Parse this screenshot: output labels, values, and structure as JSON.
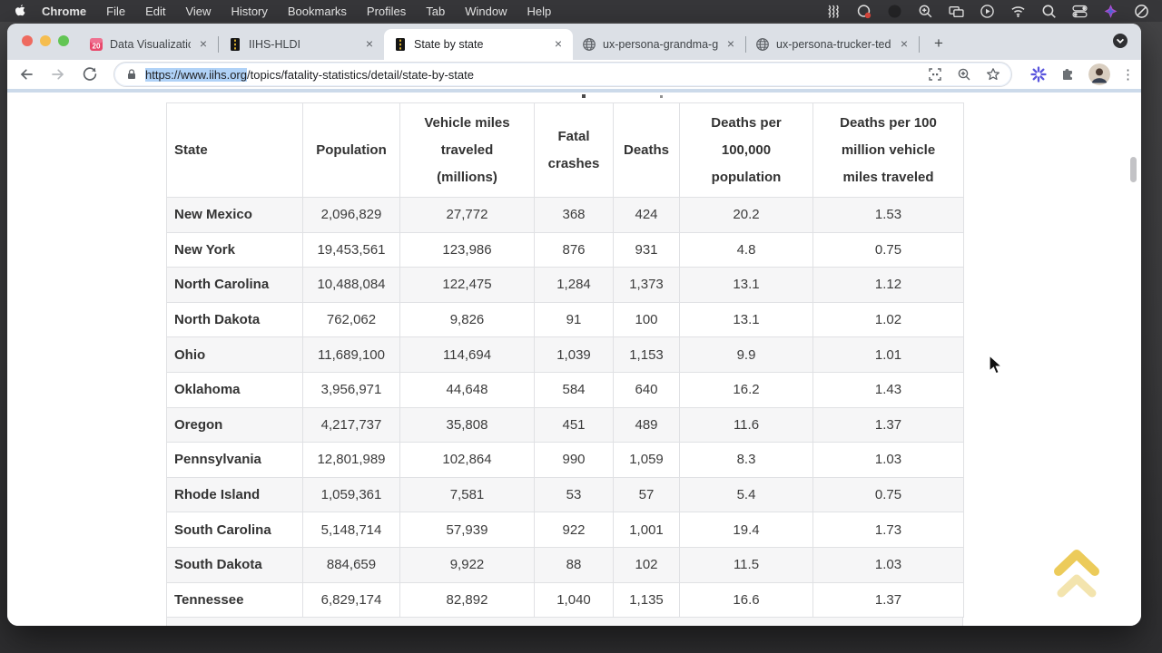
{
  "menubar": {
    "app_name": "Chrome",
    "items": [
      "File",
      "Edit",
      "View",
      "History",
      "Bookmarks",
      "Profiles",
      "Tab",
      "Window",
      "Help"
    ],
    "status_icons": [
      {
        "name": "wave-lines-icon",
        "icon": "wave"
      },
      {
        "name": "creative-cloud-icon",
        "icon": "cc"
      },
      {
        "name": "dimmed-app-icon",
        "icon": "dim"
      },
      {
        "name": "zoom-app-icon",
        "icon": "zoomapp"
      },
      {
        "name": "display-mirroring-icon",
        "icon": "displays"
      },
      {
        "name": "screen-recording-icon",
        "icon": "record"
      },
      {
        "name": "wifi-icon",
        "icon": "wifi"
      },
      {
        "name": "spotlight-search-icon",
        "icon": "search"
      },
      {
        "name": "control-center-icon",
        "icon": "toggles"
      },
      {
        "name": "colorful-app-icon",
        "icon": "colorful"
      },
      {
        "name": "do-not-disturb-icon",
        "icon": "dnd"
      }
    ]
  },
  "tabs": [
    {
      "label": "Data Visualization Founda",
      "favicon": "cal20",
      "favicon_text": "20",
      "active": false
    },
    {
      "label": "IIHS-HLDI",
      "favicon": "road",
      "active": false
    },
    {
      "label": "State by state",
      "favicon": "road",
      "active": true
    },
    {
      "label": "ux-persona-grandma-gin",
      "favicon": "globe",
      "active": false
    },
    {
      "label": "ux-persona-trucker-ted",
      "favicon": "globe",
      "active": false
    }
  ],
  "tabstrip": {
    "new_tab_label": "+",
    "close_label": "×"
  },
  "toolbar": {
    "url_selected": "https://www.iihs.org",
    "url_rest": "/topics/fatality-statistics/detail/state-by-state"
  },
  "table": {
    "columns": [
      "State",
      "Population",
      "Vehicle miles traveled (millions)",
      "Fatal crashes",
      "Deaths",
      "Deaths per 100,000 population",
      "Deaths per 100 million vehicle miles traveled"
    ],
    "rows": [
      [
        "New Mexico",
        "2,096,829",
        "27,772",
        "368",
        "424",
        "20.2",
        "1.53"
      ],
      [
        "New York",
        "19,453,561",
        "123,986",
        "876",
        "931",
        "4.8",
        "0.75"
      ],
      [
        "North Carolina",
        "10,488,084",
        "122,475",
        "1,284",
        "1,373",
        "13.1",
        "1.12"
      ],
      [
        "North Dakota",
        "762,062",
        "9,826",
        "91",
        "100",
        "13.1",
        "1.02"
      ],
      [
        "Ohio",
        "11,689,100",
        "114,694",
        "1,039",
        "1,153",
        "9.9",
        "1.01"
      ],
      [
        "Oklahoma",
        "3,956,971",
        "44,648",
        "584",
        "640",
        "16.2",
        "1.43"
      ],
      [
        "Oregon",
        "4,217,737",
        "35,808",
        "451",
        "489",
        "11.6",
        "1.37"
      ],
      [
        "Pennsylvania",
        "12,801,989",
        "102,864",
        "990",
        "1,059",
        "8.3",
        "1.03"
      ],
      [
        "Rhode Island",
        "1,059,361",
        "7,581",
        "53",
        "57",
        "5.4",
        "0.75"
      ],
      [
        "South Carolina",
        "5,148,714",
        "57,939",
        "922",
        "1,001",
        "19.4",
        "1.73"
      ],
      [
        "South Dakota",
        "884,659",
        "9,922",
        "88",
        "102",
        "11.5",
        "1.03"
      ],
      [
        "Tennessee",
        "6,829,174",
        "82,892",
        "1,040",
        "1,135",
        "16.6",
        "1.37"
      ]
    ]
  },
  "colors": {
    "accent_selection": "#b0d2f7",
    "row_stripe": "#f6f6f7",
    "scrolltop_gold": "#e9c23d",
    "menubar_bg": "#37373a",
    "tabstrip_bg": "#dce0e6"
  }
}
